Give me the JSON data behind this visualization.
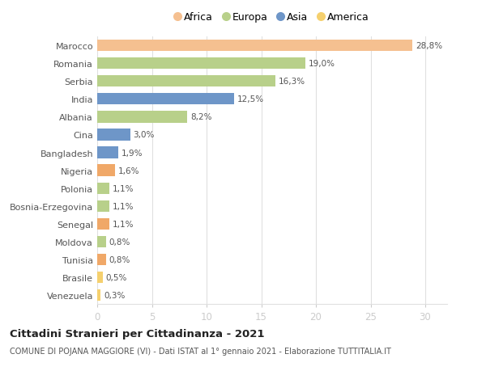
{
  "categories": [
    "Venezuela",
    "Brasile",
    "Tunisia",
    "Moldova",
    "Senegal",
    "Bosnia-Erzegovina",
    "Polonia",
    "Nigeria",
    "Bangladesh",
    "Cina",
    "Albania",
    "India",
    "Serbia",
    "Romania",
    "Marocco"
  ],
  "values": [
    0.3,
    0.5,
    0.8,
    0.8,
    1.1,
    1.1,
    1.1,
    1.6,
    1.9,
    3.0,
    8.2,
    12.5,
    16.3,
    19.0,
    28.8
  ],
  "labels": [
    "0,3%",
    "0,5%",
    "0,8%",
    "0,8%",
    "1,1%",
    "1,1%",
    "1,1%",
    "1,6%",
    "1,9%",
    "3,0%",
    "8,2%",
    "12,5%",
    "16,3%",
    "19,0%",
    "28,8%"
  ],
  "colors": [
    "#f5d06e",
    "#f5d06e",
    "#f0a868",
    "#b8d08a",
    "#f0a868",
    "#b8d08a",
    "#b8d08a",
    "#f0a868",
    "#6e96c8",
    "#6e96c8",
    "#b8d08a",
    "#6e96c8",
    "#b8d08a",
    "#b8d08a",
    "#f5c090"
  ],
  "legend_labels": [
    "Africa",
    "Europa",
    "Asia",
    "America"
  ],
  "legend_colors": [
    "#f5c090",
    "#b8d08a",
    "#6e96c8",
    "#f5d06e"
  ],
  "title": "Cittadini Stranieri per Cittadinanza - 2021",
  "subtitle": "COMUNE DI POJANA MAGGIORE (VI) - Dati ISTAT al 1° gennaio 2021 - Elaborazione TUTTITALIA.IT",
  "xlim": [
    0,
    32
  ],
  "xticks": [
    0,
    5,
    10,
    15,
    20,
    25,
    30
  ],
  "bg_color": "#ffffff",
  "grid_color": "#e0e0e0",
  "bar_height": 0.65
}
